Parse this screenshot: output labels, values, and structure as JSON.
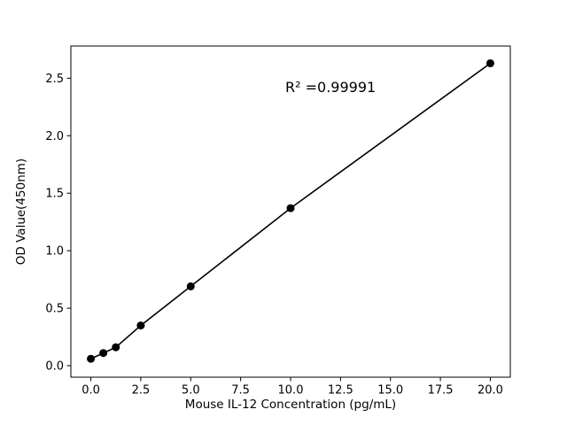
{
  "figure": {
    "background": "#ffffff"
  },
  "chart_data": {
    "type": "scatter",
    "title": "",
    "xlabel": "Mouse IL-12 Concentration (pg/mL)",
    "ylabel": "OD Value(450nm)",
    "x": [
      0,
      0.625,
      1.25,
      2.5,
      5,
      10,
      20
    ],
    "y": [
      0.06,
      0.11,
      0.16,
      0.35,
      0.69,
      1.37,
      2.63
    ],
    "fit_line": true,
    "xlim": [
      -1,
      21
    ],
    "ylim": [
      -0.1,
      2.78
    ],
    "xticks": {
      "values": [
        0,
        2.5,
        5,
        7.5,
        10,
        12.5,
        15,
        17.5,
        20
      ],
      "labels": [
        "0.0",
        "2.5",
        "5.0",
        "7.5",
        "10.0",
        "12.5",
        "15.0",
        "17.5",
        "20.0"
      ]
    },
    "yticks": {
      "values": [
        0,
        0.5,
        1.0,
        1.5,
        2.0,
        2.5
      ],
      "labels": [
        "0.0",
        "0.5",
        "1.0",
        "1.5",
        "2.0",
        "2.5"
      ]
    },
    "annotation": {
      "text": "R² =0.99991",
      "x": 12,
      "y": 2.38
    },
    "grid": false,
    "legend": null,
    "marker_color": "#000000",
    "line_color": "#000000"
  }
}
